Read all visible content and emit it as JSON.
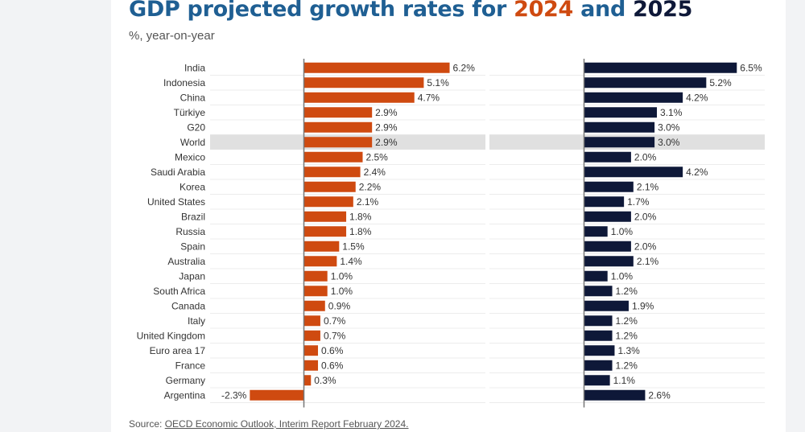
{
  "header": {
    "title_prefix": "GDP projected growth rates for ",
    "year1": "2024",
    "title_and": " and ",
    "year2": "2025",
    "subtitle": "%, year-on-year"
  },
  "colors": {
    "series_2024": "#cf4a10",
    "series_2025": "#0e1838",
    "highlight": "#e0e0e0"
  },
  "footer": {
    "source_label": "Source: ",
    "source_link": "OECD Economic Outlook, Interim Report February 2024."
  },
  "chart_data": {
    "type": "bar",
    "orientation": "horizontal",
    "title": "GDP projected growth rates for 2024 and 2025",
    "subtitle": "%, year-on-year",
    "highlighted_category": "World",
    "categories": [
      "India",
      "Indonesia",
      "China",
      "Türkiye",
      "G20",
      "World",
      "Mexico",
      "Saudi Arabia",
      "Korea",
      "United States",
      "Brazil",
      "Russia",
      "Spain",
      "Australia",
      "Japan",
      "South Africa",
      "Canada",
      "Italy",
      "United Kingdom",
      "Euro area 17",
      "France",
      "Germany",
      "Argentina"
    ],
    "series": [
      {
        "name": "2024",
        "values": [
          6.2,
          5.1,
          4.7,
          2.9,
          2.9,
          2.9,
          2.5,
          2.4,
          2.2,
          2.1,
          1.8,
          1.8,
          1.5,
          1.4,
          1.0,
          1.0,
          0.9,
          0.7,
          0.7,
          0.6,
          0.6,
          0.3,
          -2.3
        ],
        "labels": [
          "6.2%",
          "5.1%",
          "4.7%",
          "2.9%",
          "2.9%",
          "2.9%",
          "2.5%",
          "2.4%",
          "2.2%",
          "2.1%",
          "1.8%",
          "1.8%",
          "1.5%",
          "1.4%",
          "1.0%",
          "1.0%",
          "0.9%",
          "0.7%",
          "0.7%",
          "0.6%",
          "0.6%",
          "0.3%",
          "-2.3%"
        ]
      },
      {
        "name": "2025",
        "values": [
          6.5,
          5.2,
          4.2,
          3.1,
          3.0,
          3.0,
          2.0,
          4.2,
          2.1,
          1.7,
          2.0,
          1.0,
          2.0,
          2.1,
          1.0,
          1.2,
          1.9,
          1.2,
          1.2,
          1.3,
          1.2,
          1.1,
          2.6
        ],
        "labels": [
          "6.5%",
          "5.2%",
          "4.2%",
          "3.1%",
          "3.0%",
          "3.0%",
          "2.0%",
          "4.2%",
          "2.1%",
          "1.7%",
          "2.0%",
          "1.0%",
          "2.0%",
          "2.1%",
          "1.0%",
          "1.2%",
          "1.9%",
          "1.2%",
          "1.2%",
          "1.3%",
          "1.2%",
          "1.1%",
          "2.6%"
        ]
      }
    ],
    "xlabel": "",
    "ylabel": "",
    "grid": false,
    "legend": "none"
  }
}
